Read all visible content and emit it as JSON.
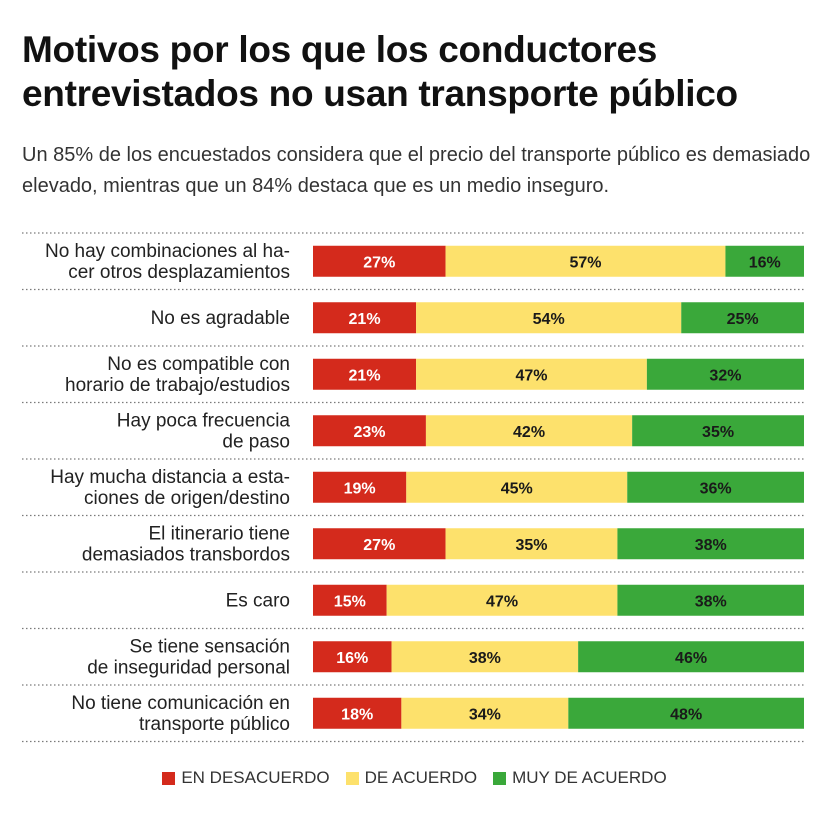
{
  "chart_data": {
    "type": "bar",
    "orientation": "horizontal",
    "stacked": true,
    "title": "Motivos por los que los conductores entrevistados no usan transporte público",
    "subtitle": "Un 85% de los encuestados considera que el precio del transporte público es demasiado elevado, mientras que un 84% destaca que es un medio inseguro.",
    "categories": [
      [
        "No hay combinaciones al ha-",
        "cer otros desplazamientos"
      ],
      [
        "No es agradable"
      ],
      [
        "No es compatible con",
        "horario de trabajo/estudios"
      ],
      [
        "Hay poca frecuencia",
        "de paso"
      ],
      [
        "Hay mucha distancia a esta-",
        "ciones de origen/destino"
      ],
      [
        "El itinerario tiene",
        "demasiados transbordos"
      ],
      [
        "Es caro"
      ],
      [
        "Se tiene sensación",
        "de inseguridad personal"
      ],
      [
        "No tiene comunicación en",
        "transporte público"
      ]
    ],
    "series": [
      {
        "name": "EN DESACUERDO",
        "color": "#d42a1c",
        "text_color": "#ffffff",
        "values": [
          27,
          21,
          21,
          23,
          19,
          27,
          15,
          16,
          18
        ]
      },
      {
        "name": "DE ACUERDO",
        "color": "#fde16c",
        "text_color": "#1a1a1a",
        "values": [
          57,
          54,
          47,
          42,
          45,
          35,
          47,
          38,
          34
        ]
      },
      {
        "name": "MUY DE ACUERDO",
        "color": "#3aa83a",
        "text_color": "#1a1a1a",
        "values": [
          16,
          25,
          32,
          35,
          36,
          38,
          38,
          46,
          48
        ]
      }
    ],
    "value_suffix": "%",
    "xlim": [
      0,
      100
    ],
    "grid": false,
    "legend_position": "bottom"
  }
}
